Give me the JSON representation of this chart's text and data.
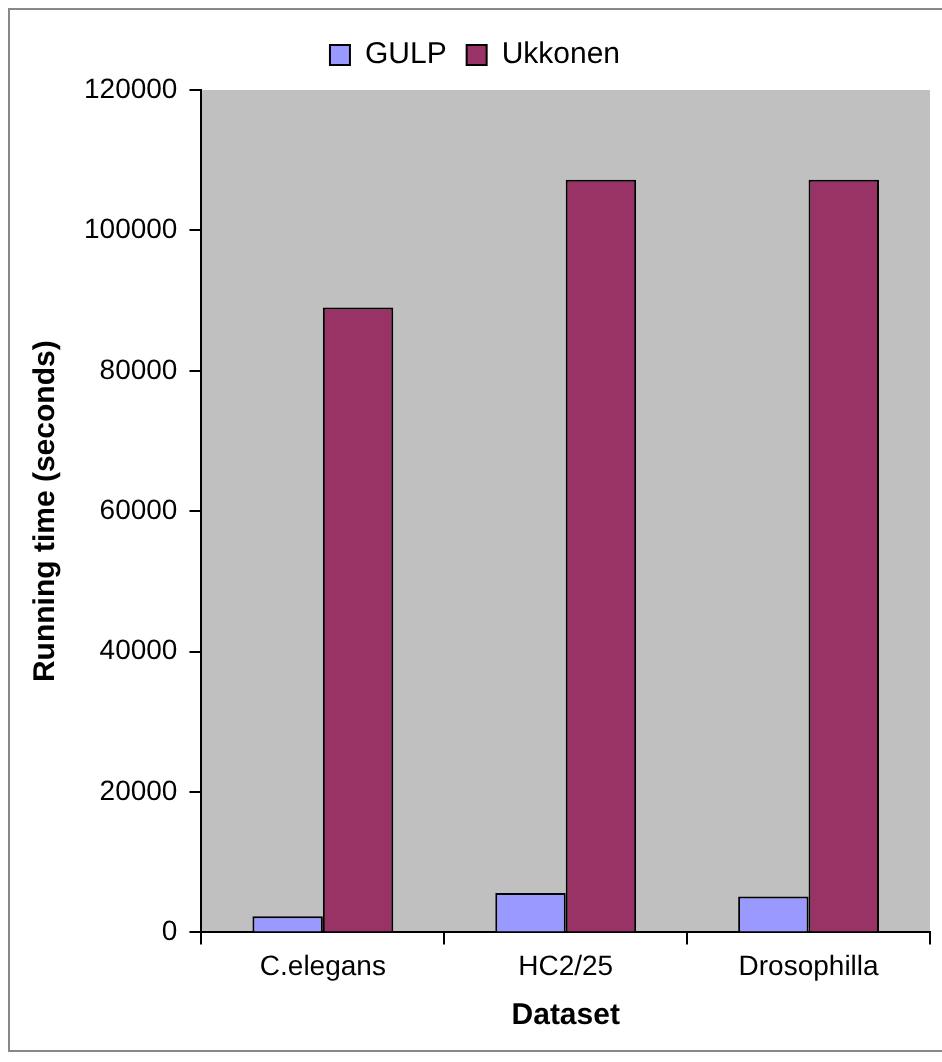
{
  "chart_data": {
    "type": "bar",
    "xlabel": "Dataset",
    "ylabel": "Running time (seconds)",
    "categories": [
      "C.elegans",
      "HC2/25",
      "Drosophilla"
    ],
    "series": [
      {
        "name": "GULP",
        "color": "#9999ff",
        "values": [
          2300,
          5600,
          5100
        ]
      },
      {
        "name": "Ukkonen",
        "color": "#993366",
        "values": [
          89000,
          107200,
          107200
        ]
      }
    ],
    "ylim": [
      0,
      120000
    ],
    "yticks": [
      0,
      20000,
      40000,
      60000,
      80000,
      100000,
      120000
    ],
    "grid": false,
    "legend": "top"
  }
}
